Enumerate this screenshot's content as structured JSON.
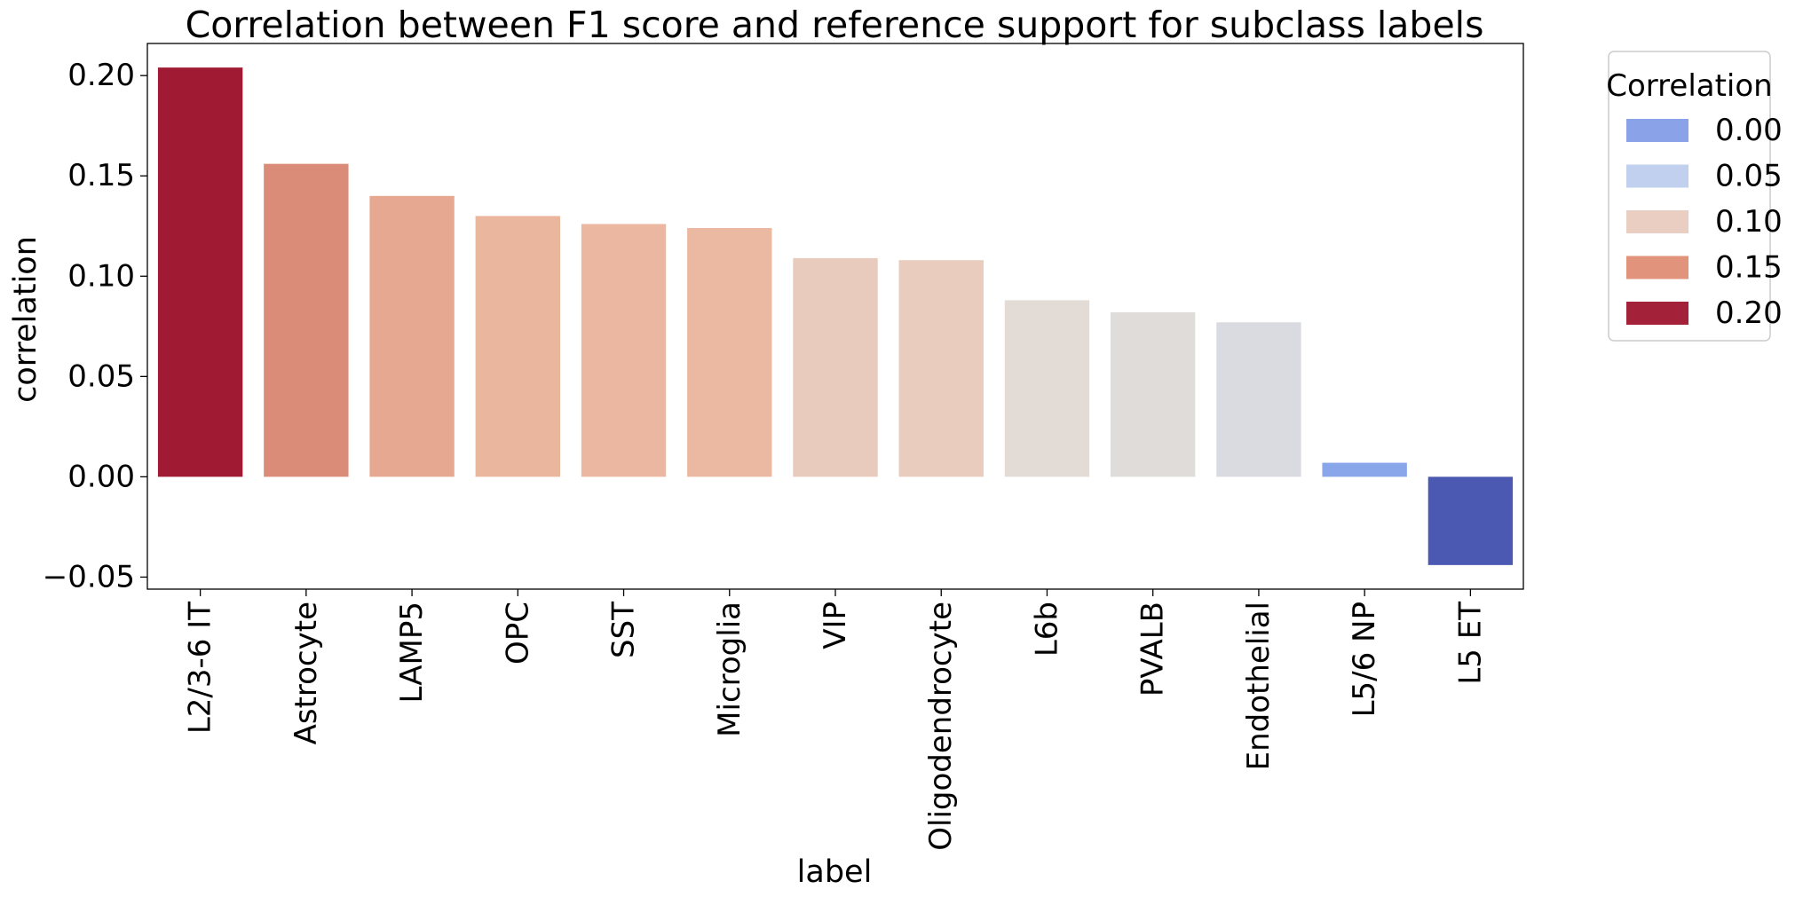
{
  "chart_data": {
    "type": "bar",
    "title": "Correlation between F1 score and reference support for subclass labels",
    "xlabel": "label",
    "ylabel": "correlation",
    "categories": [
      "L2/3-6 IT",
      "Astrocyte",
      "LAMP5",
      "OPC",
      "SST",
      "Microglia",
      "VIP",
      "Oligodendrocyte",
      "L6b",
      "PVALB",
      "Endothelial",
      "L5/6 NP",
      "L5 ET"
    ],
    "values": [
      0.204,
      0.156,
      0.14,
      0.13,
      0.126,
      0.124,
      0.109,
      0.108,
      0.088,
      0.082,
      0.077,
      0.007,
      -0.044
    ],
    "bar_colors": [
      "#a01a34",
      "#da8c78",
      "#e6a890",
      "#eab69e",
      "#ebb7a0",
      "#ebb8a1",
      "#e9cbbd",
      "#e9ccbe",
      "#e3dbd5",
      "#dfdcda",
      "#dadbe0",
      "#8aa6ea",
      "#4c59b3"
    ],
    "ylim": [
      -0.056,
      0.216
    ],
    "yticks": [
      -0.05,
      0.0,
      0.05,
      0.1,
      0.15,
      0.2
    ],
    "ytick_labels": [
      "−0.05",
      "0.00",
      "0.05",
      "0.10",
      "0.15",
      "0.20"
    ],
    "grid": false,
    "legend": {
      "title": "Correlation",
      "placement": "outside-top-right",
      "entries": [
        {
          "label": "0.00",
          "color": "#8aa2e8"
        },
        {
          "label": "0.05",
          "color": "#c0d0ee"
        },
        {
          "label": "0.10",
          "color": "#e9cec1"
        },
        {
          "label": "0.15",
          "color": "#e2937b"
        },
        {
          "label": "0.20",
          "color": "#a3223a"
        }
      ]
    }
  }
}
